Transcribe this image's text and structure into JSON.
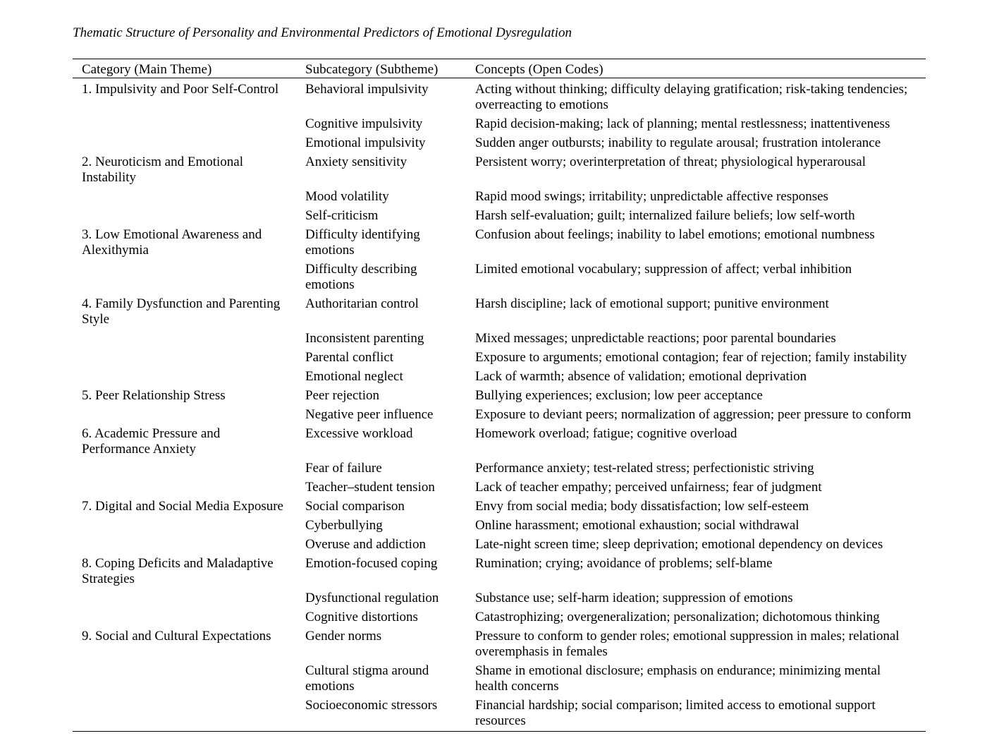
{
  "title": "Thematic Structure of Personality and Environmental Predictors of Emotional Dysregulation",
  "colors": {
    "text": "#000000",
    "background": "#ffffff",
    "rule": "#000000"
  },
  "table": {
    "headers": [
      "Category (Main Theme)",
      "Subcategory (Subtheme)",
      "Concepts (Open Codes)"
    ],
    "rows": [
      {
        "category": "1. Impulsivity and Poor Self-Control",
        "subcategory": "Behavioral impulsivity",
        "concepts": "Acting without thinking; difficulty delaying gratification; risk-taking tendencies; overreacting to emotions"
      },
      {
        "category": "",
        "subcategory": "Cognitive impulsivity",
        "concepts": "Rapid decision-making; lack of planning; mental restlessness; inattentiveness"
      },
      {
        "category": "",
        "subcategory": "Emotional impulsivity",
        "concepts": "Sudden anger outbursts; inability to regulate arousal; frustration intolerance"
      },
      {
        "category": "2. Neuroticism and Emotional Instability",
        "subcategory": "Anxiety sensitivity",
        "concepts": "Persistent worry; overinterpretation of threat; physiological hyperarousal"
      },
      {
        "category": "",
        "subcategory": "Mood volatility",
        "concepts": "Rapid mood swings; irritability; unpredictable affective responses"
      },
      {
        "category": "",
        "subcategory": "Self-criticism",
        "concepts": "Harsh self-evaluation; guilt; internalized failure beliefs; low self-worth"
      },
      {
        "category": "3. Low Emotional Awareness and Alexithymia",
        "subcategory": "Difficulty identifying emotions",
        "concepts": "Confusion about feelings; inability to label emotions; emotional numbness"
      },
      {
        "category": "",
        "subcategory": "Difficulty describing emotions",
        "concepts": "Limited emotional vocabulary; suppression of affect; verbal inhibition"
      },
      {
        "category": "4. Family Dysfunction and Parenting Style",
        "subcategory": "Authoritarian control",
        "concepts": "Harsh discipline; lack of emotional support; punitive environment"
      },
      {
        "category": "",
        "subcategory": "Inconsistent parenting",
        "concepts": "Mixed messages; unpredictable reactions; poor parental boundaries"
      },
      {
        "category": "",
        "subcategory": "Parental conflict",
        "concepts": "Exposure to arguments; emotional contagion; fear of rejection; family instability"
      },
      {
        "category": "",
        "subcategory": "Emotional neglect",
        "concepts": "Lack of warmth; absence of validation; emotional deprivation"
      },
      {
        "category": "5. Peer Relationship Stress",
        "subcategory": "Peer rejection",
        "concepts": "Bullying experiences; exclusion; low peer acceptance"
      },
      {
        "category": "",
        "subcategory": "Negative peer influence",
        "concepts": "Exposure to deviant peers; normalization of aggression; peer pressure to conform"
      },
      {
        "category": "6. Academic Pressure and Performance Anxiety",
        "subcategory": "Excessive workload",
        "concepts": "Homework overload; fatigue; cognitive overload"
      },
      {
        "category": "",
        "subcategory": "Fear of failure",
        "concepts": "Performance anxiety; test-related stress; perfectionistic striving"
      },
      {
        "category": "",
        "subcategory": "Teacher–student tension",
        "concepts": "Lack of teacher empathy; perceived unfairness; fear of judgment"
      },
      {
        "category": "7. Digital and Social Media Exposure",
        "subcategory": "Social comparison",
        "concepts": "Envy from social media; body dissatisfaction; low self-esteem"
      },
      {
        "category": "",
        "subcategory": "Cyberbullying",
        "concepts": "Online harassment; emotional exhaustion; social withdrawal"
      },
      {
        "category": "",
        "subcategory": "Overuse and addiction",
        "concepts": "Late-night screen time; sleep deprivation; emotional dependency on devices"
      },
      {
        "category": "8. Coping Deficits and Maladaptive Strategies",
        "subcategory": "Emotion-focused coping",
        "concepts": "Rumination; crying; avoidance of problems; self-blame"
      },
      {
        "category": "",
        "subcategory": "Dysfunctional regulation",
        "concepts": "Substance use; self-harm ideation; suppression of emotions"
      },
      {
        "category": "",
        "subcategory": "Cognitive distortions",
        "concepts": "Catastrophizing; overgeneralization; personalization; dichotomous thinking"
      },
      {
        "category": "9. Social and Cultural Expectations",
        "subcategory": "Gender norms",
        "concepts": "Pressure to conform to gender roles; emotional suppression in males; relational overemphasis in females"
      },
      {
        "category": "",
        "subcategory": "Cultural stigma around emotions",
        "concepts": "Shame in emotional disclosure; emphasis on endurance; minimizing mental health concerns"
      },
      {
        "category": "",
        "subcategory": "Socioeconomic stressors",
        "concepts": "Financial hardship; social comparison; limited access to emotional support resources"
      }
    ]
  }
}
